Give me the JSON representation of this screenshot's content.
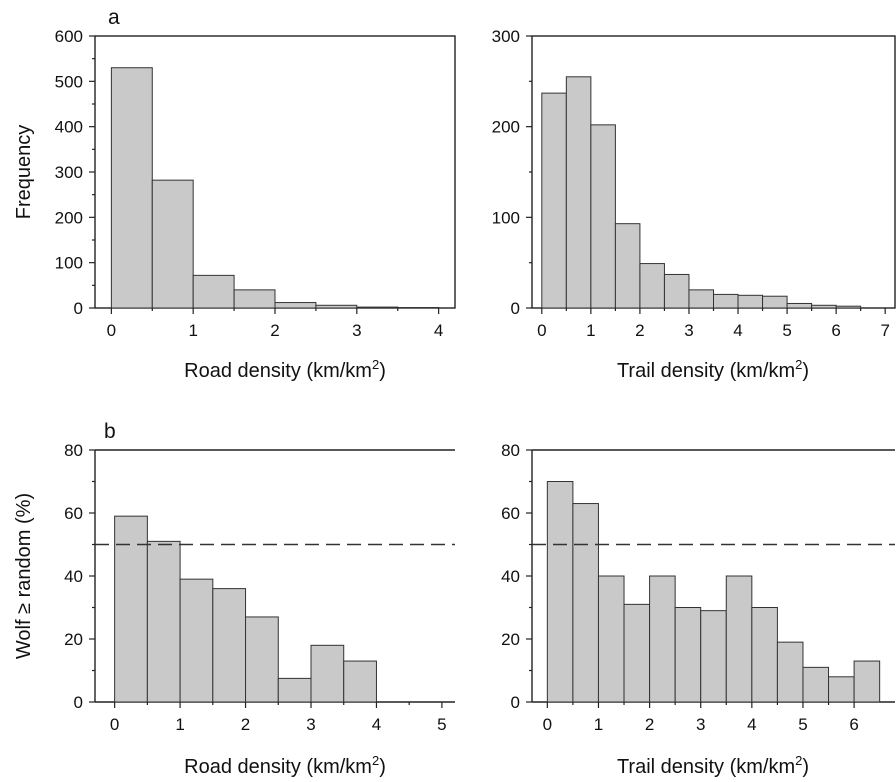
{
  "panel_labels": {
    "a": "a",
    "b": "b"
  },
  "chart_data": [
    {
      "type": "bar",
      "panel": "a-left",
      "xlabel": "Road density (km/km",
      "xlabel_sup": "2",
      "xlabel_tail": ")",
      "ylabel": "Frequency",
      "bin_width": 0.5,
      "bin_starts": [
        0,
        0.5,
        1,
        1.5,
        2,
        2.5,
        3,
        3.5
      ],
      "values": [
        530,
        282,
        72,
        40,
        12,
        6,
        2,
        1
      ],
      "xlim": [
        -0.2,
        4.2
      ],
      "ylim": [
        0,
        600
      ],
      "xticks": [
        0,
        1,
        2,
        3,
        4
      ],
      "yticks": [
        0,
        100,
        200,
        300,
        400,
        500,
        600
      ]
    },
    {
      "type": "bar",
      "panel": "a-right",
      "xlabel": "Trail density (km/km",
      "xlabel_sup": "2",
      "xlabel_tail": ")",
      "ylabel": "",
      "bin_width": 0.5,
      "bin_starts": [
        0,
        0.5,
        1,
        1.5,
        2,
        2.5,
        3,
        3.5,
        4,
        4.5,
        5,
        5.5,
        6
      ],
      "values": [
        237,
        255,
        202,
        93,
        49,
        37,
        20,
        15,
        14,
        13,
        5,
        3,
        2
      ],
      "xlim": [
        -0.2,
        7.2
      ],
      "ylim": [
        0,
        300
      ],
      "xticks": [
        0,
        1,
        2,
        3,
        4,
        5,
        6,
        7
      ],
      "yticks": [
        0,
        100,
        200,
        300
      ]
    },
    {
      "type": "bar",
      "panel": "b-left",
      "xlabel": "Road density (km/km",
      "xlabel_sup": "2",
      "xlabel_tail": ")",
      "ylabel": "Wolf ≥ random (%)",
      "bin_width": 0.5,
      "bin_starts": [
        0,
        0.5,
        1,
        1.5,
        2,
        2.5,
        3,
        3.5
      ],
      "values": [
        59,
        51,
        39,
        36,
        27,
        7.5,
        18,
        13
      ],
      "reference_line": 50,
      "xlim": [
        -0.3,
        5.2
      ],
      "ylim": [
        0,
        80
      ],
      "xticks": [
        0,
        1,
        2,
        3,
        4,
        5
      ],
      "yticks": [
        0,
        20,
        40,
        60,
        80
      ]
    },
    {
      "type": "bar",
      "panel": "b-right",
      "xlabel": "Trail density (km/km",
      "xlabel_sup": "2",
      "xlabel_tail": ")",
      "ylabel": "",
      "bin_width": 0.5,
      "bin_starts": [
        0,
        0.5,
        1,
        1.5,
        2,
        2.5,
        3,
        3.5,
        4,
        4.5,
        5,
        5.5,
        6
      ],
      "values": [
        70,
        63,
        40,
        31,
        40,
        30,
        29,
        40,
        30,
        19,
        11,
        8,
        13
      ],
      "reference_line": 50,
      "xlim": [
        -0.3,
        6.8
      ],
      "ylim": [
        0,
        80
      ],
      "xticks": [
        0,
        1,
        2,
        3,
        4,
        5,
        6
      ],
      "yticks": [
        0,
        20,
        40,
        60,
        80
      ]
    }
  ]
}
